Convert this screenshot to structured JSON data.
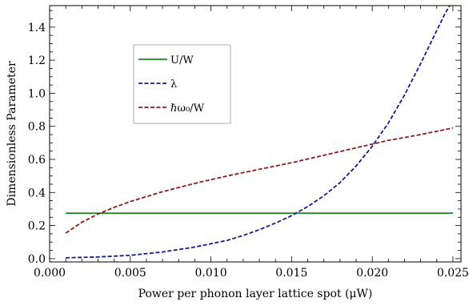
{
  "chart_data": {
    "type": "line",
    "xlabel": "Power per phonon layer lattice spot (μW)",
    "ylabel": "Dimensionless Parameter",
    "xlim": [
      0.0,
      0.0255
    ],
    "ylim": [
      -0.02,
      1.53
    ],
    "x_ticks": [
      "0.000",
      "0.005",
      "0.010",
      "0.015",
      "0.020",
      "0.025"
    ],
    "x_tick_values": [
      0.0,
      0.005,
      0.01,
      0.015,
      0.02,
      0.025
    ],
    "y_ticks": [
      "0.0",
      "0.2",
      "0.4",
      "0.6",
      "0.8",
      "1.0",
      "1.2",
      "1.4"
    ],
    "y_tick_values": [
      0.0,
      0.2,
      0.4,
      0.6,
      0.8,
      1.0,
      1.2,
      1.4
    ],
    "grid": false,
    "legend_position": "upper-left-inside",
    "series": [
      {
        "name": "U/W",
        "color": "#1f8a1f",
        "style": "solid",
        "x": [
          0.001,
          0.005,
          0.01,
          0.015,
          0.02,
          0.025
        ],
        "values": [
          0.275,
          0.275,
          0.275,
          0.275,
          0.275,
          0.275
        ]
      },
      {
        "name": "λ",
        "color": "#1a1a8c",
        "style": "dashed",
        "x": [
          0.001,
          0.003,
          0.005,
          0.007,
          0.009,
          0.011,
          0.012,
          0.013,
          0.014,
          0.015,
          0.016,
          0.017,
          0.018,
          0.019,
          0.02,
          0.021,
          0.022,
          0.023,
          0.024,
          0.0245,
          0.0248
        ],
        "values": [
          0.005,
          0.01,
          0.02,
          0.04,
          0.07,
          0.11,
          0.14,
          0.175,
          0.215,
          0.26,
          0.315,
          0.38,
          0.46,
          0.56,
          0.68,
          0.82,
          0.99,
          1.18,
          1.38,
          1.48,
          1.53
        ]
      },
      {
        "name": "ℏω₀/W",
        "color": "#8b1a1a",
        "style": "dashed",
        "x": [
          0.001,
          0.002,
          0.003,
          0.004,
          0.005,
          0.007,
          0.009,
          0.011,
          0.013,
          0.015,
          0.017,
          0.019,
          0.021,
          0.023,
          0.025
        ],
        "values": [
          0.155,
          0.22,
          0.27,
          0.31,
          0.345,
          0.405,
          0.455,
          0.5,
          0.54,
          0.58,
          0.625,
          0.67,
          0.715,
          0.75,
          0.79
        ]
      }
    ]
  }
}
